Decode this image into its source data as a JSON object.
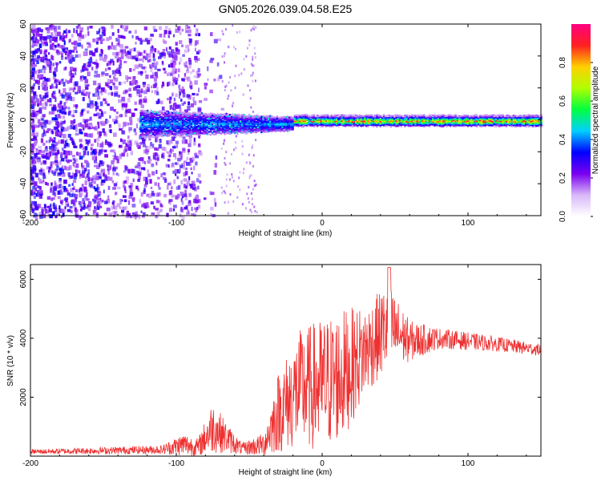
{
  "title": "GN05.2026.039.04.58.E25",
  "chart_data": [
    {
      "type": "heatmap",
      "title": "GN05.2026.039.04.58.E25",
      "xlabel": "Height of straight line (km)",
      "ylabel": "Frequency (Hz)",
      "xlim": [
        -200,
        150
      ],
      "ylim": [
        -60,
        60
      ],
      "xticks": [
        -200,
        -100,
        0,
        100
      ],
      "yticks": [
        -60,
        -40,
        -20,
        0,
        20,
        40,
        60
      ],
      "colorbar": {
        "label": "Normalized spectral amplitude",
        "range": [
          0.0,
          1.0
        ],
        "ticks": [
          0.0,
          0.2,
          0.4,
          0.6,
          0.8
        ],
        "tick_labels": [
          "0.0",
          "0.2",
          "0.4",
          "0.6",
          "0.8"
        ],
        "colors": [
          "#ffffff",
          "#d8b8f8",
          "#7a00f0",
          "#0000ff",
          "#00d0ff",
          "#00ff40",
          "#b0ff00",
          "#ffd000",
          "#ff2020",
          "#ff0080"
        ]
      },
      "regions": [
        {
          "x_range": [
            -200,
            -90
          ],
          "description": "scattered low-amplitude noise across full band"
        },
        {
          "x_range": [
            -120,
            -20
          ],
          "freq_center": 0,
          "freq_halfwidth": 8,
          "peak_amplitude": 0.35
        },
        {
          "x_range": [
            -20,
            150
          ],
          "freq_center": 0,
          "freq_halfwidth": 3,
          "peak_amplitude": 0.85
        }
      ]
    },
    {
      "type": "line",
      "xlabel": "Height of straight line (km)",
      "ylabel": "SNR (10 * v/v)",
      "xlim": [
        -200,
        150
      ],
      "ylim": [
        0,
        6500
      ],
      "xticks": [
        -200,
        -100,
        0,
        100
      ],
      "yticks": [
        2000,
        4000,
        6000
      ],
      "series": [
        {
          "name": "SNR",
          "color": "#ee3030",
          "envelope": [
            {
              "x": -200,
              "mean": 150,
              "amp": 80
            },
            {
              "x": -110,
              "mean": 220,
              "amp": 150
            },
            {
              "x": -95,
              "mean": 400,
              "amp": 400
            },
            {
              "x": -85,
              "mean": 300,
              "amp": 300
            },
            {
              "x": -75,
              "mean": 1000,
              "amp": 900
            },
            {
              "x": -65,
              "mean": 600,
              "amp": 500
            },
            {
              "x": -55,
              "mean": 250,
              "amp": 200
            },
            {
              "x": -40,
              "mean": 400,
              "amp": 400
            },
            {
              "x": -30,
              "mean": 1500,
              "amp": 1400
            },
            {
              "x": -15,
              "mean": 2300,
              "amp": 2000
            },
            {
              "x": 0,
              "mean": 2400,
              "amp": 2300
            },
            {
              "x": 15,
              "mean": 2800,
              "amp": 2200
            },
            {
              "x": 30,
              "mean": 3600,
              "amp": 1500
            },
            {
              "x": 45,
              "mean": 4400,
              "amp": 1500
            },
            {
              "x": 60,
              "mean": 3900,
              "amp": 700
            },
            {
              "x": 80,
              "mean": 4000,
              "amp": 350
            },
            {
              "x": 120,
              "mean": 3800,
              "amp": 250
            },
            {
              "x": 150,
              "mean": 3600,
              "amp": 200
            }
          ]
        }
      ]
    }
  ]
}
